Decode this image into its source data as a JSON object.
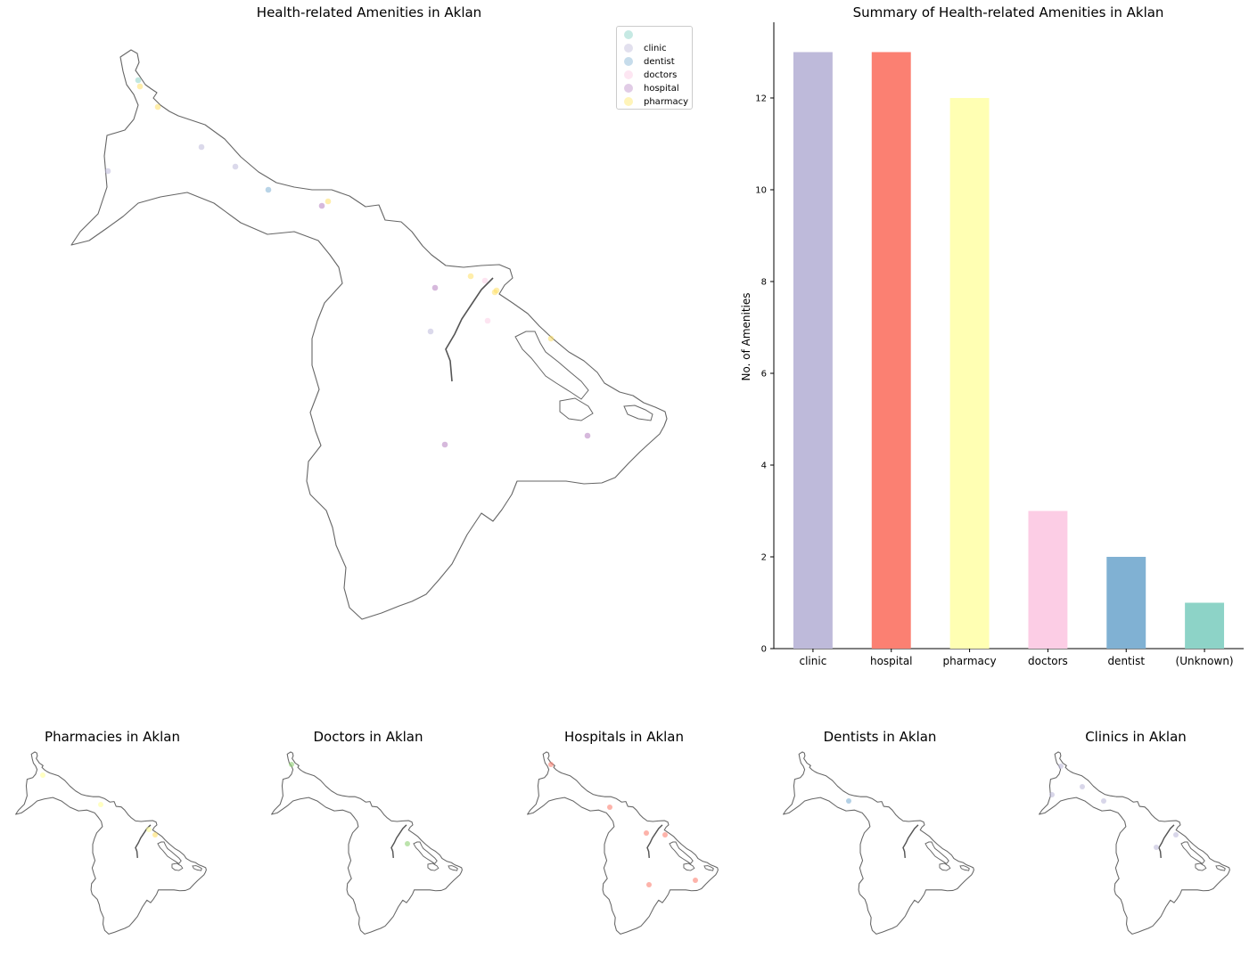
{
  "main_map": {
    "title": "Health-related Amenities in Aklan",
    "legend": [
      {
        "label": "clinic",
        "color": "#bebada"
      },
      {
        "label": "dentist",
        "color": "#80b1d3"
      },
      {
        "label": "doctors",
        "color": "#fccde5"
      },
      {
        "label": "hospital",
        "color": "#b3a0d3"
      },
      {
        "label": "pharmacy",
        "color": "#ffed8a"
      }
    ],
    "unknown_color": "#8dd3c7"
  },
  "small_maps": [
    {
      "title": "Pharmacies in Aklan"
    },
    {
      "title": "Doctors in Aklan"
    },
    {
      "title": "Hospitals in Aklan"
    },
    {
      "title": "Dentists in Aklan"
    },
    {
      "title": "Clinics in Aklan"
    }
  ],
  "chart_data": {
    "type": "bar",
    "title": "Summary of Health-related Amenities in Aklan",
    "xlabel": "",
    "ylabel": "No. of Amenities",
    "categories": [
      "clinic",
      "hospital",
      "pharmacy",
      "doctors",
      "dentist",
      "(Unknown)"
    ],
    "values": [
      13,
      13,
      12,
      3,
      2,
      1
    ],
    "colors": [
      "#bebada",
      "#fb8072",
      "#ffffb3",
      "#fccde5",
      "#80b1d3",
      "#8dd3c7"
    ],
    "yticks": [
      0,
      2,
      4,
      6,
      8,
      10,
      12
    ],
    "ylim": [
      0,
      13.65
    ],
    "grid": false,
    "legend": "none"
  }
}
